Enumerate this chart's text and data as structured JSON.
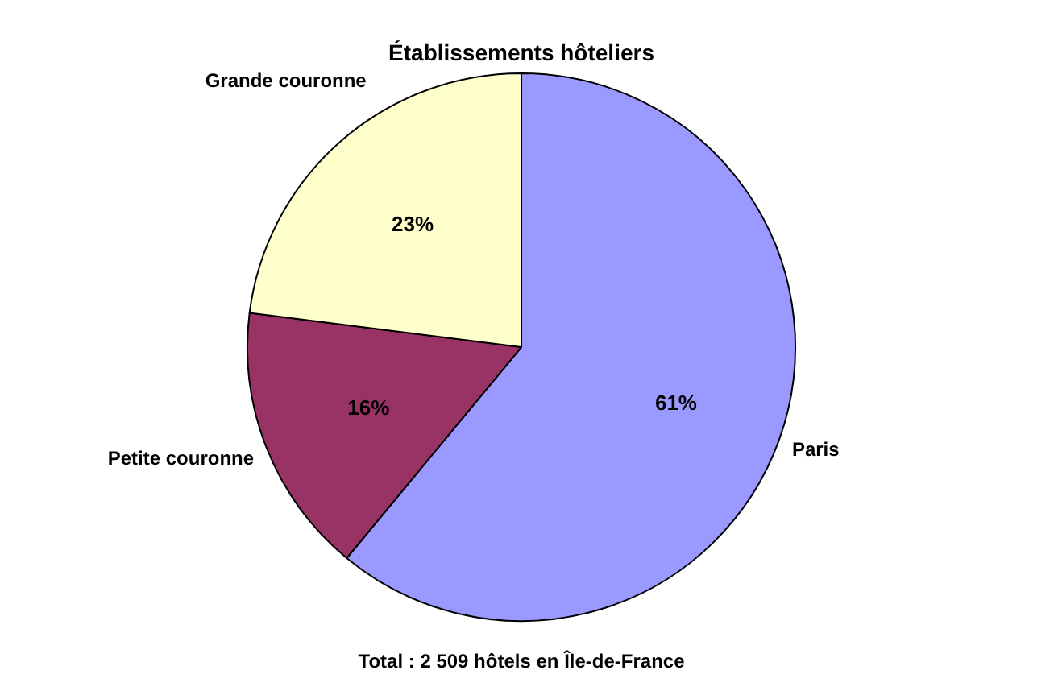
{
  "chart_data": {
    "type": "pie",
    "title": "Établissements hôteliers",
    "categories": [
      "Paris",
      "Petite couronne",
      "Grande couronne"
    ],
    "values": [
      61,
      16,
      23
    ],
    "colors": [
      "#9999ff",
      "#993366",
      "#ffffcc"
    ],
    "value_labels": [
      "61%",
      "16%",
      "23%"
    ],
    "annotations": [
      "Total : 2 509 hôtels en Île-de-France"
    ]
  }
}
